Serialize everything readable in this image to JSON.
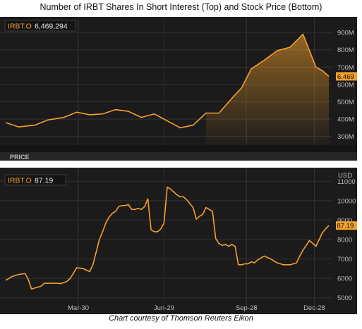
{
  "title": "Number of IRBT Shares In Short Interest (Top) and Stock Price (Bottom)",
  "caption": "Chart courtesy of Thomson Reuters Eikon",
  "colors": {
    "background": "#1b1b1b",
    "line": "#f5a02a",
    "grid": "#333333",
    "text": "#bdbdbd",
    "tag_bg": "#f5a02a"
  },
  "chart_data": [
    {
      "type": "area",
      "legend": {
        "ticker": "IRBT.O",
        "value": "6,469,294"
      },
      "last_value_tag": "6.469",
      "yticks": [
        {
          "value": 3,
          "label": "300M"
        },
        {
          "value": 4,
          "label": "400M"
        },
        {
          "value": 5,
          "label": "500M"
        },
        {
          "value": 6,
          "label": "600M"
        },
        {
          "value": 7,
          "label": "700M"
        },
        {
          "value": 8,
          "label": "800M"
        },
        {
          "value": 9,
          "label": "900M"
        }
      ],
      "ylim": [
        2.5,
        9.9
      ],
      "xlim": [
        0,
        100
      ],
      "x": [
        0,
        4,
        9,
        13,
        18,
        22,
        26,
        30,
        34,
        38,
        42,
        46,
        50,
        54,
        58,
        62,
        66,
        70,
        73,
        76,
        80,
        84,
        88,
        92,
        96,
        98,
        100
      ],
      "values": [
        3.8,
        3.55,
        3.65,
        3.95,
        4.1,
        4.4,
        4.25,
        4.3,
        4.55,
        4.45,
        4.1,
        4.3,
        3.9,
        3.5,
        3.65,
        4.35,
        4.35,
        5.2,
        5.8,
        6.9,
        7.4,
        7.95,
        8.15,
        8.9,
        7.0,
        6.8,
        6.469
      ]
    },
    {
      "type": "line",
      "section_label": "PRICE",
      "legend": {
        "ticker": "IRBT.O",
        "value": "87.19"
      },
      "last_value_tag": "87.19",
      "yunit": "USD",
      "yticks": [
        {
          "value": 50,
          "label": "5000"
        },
        {
          "value": 60,
          "label": "6000"
        },
        {
          "value": 70,
          "label": "7000"
        },
        {
          "value": 80,
          "label": "8000"
        },
        {
          "value": 90,
          "label": "9000"
        },
        {
          "value": 100,
          "label": "10000"
        },
        {
          "value": 110,
          "label": "11000"
        }
      ],
      "ylim": [
        43,
        117
      ],
      "xlim": [
        0,
        100
      ],
      "xticks": [
        {
          "value": 22.5,
          "label": "Mar-30"
        },
        {
          "value": 49,
          "label": "Jun-29"
        },
        {
          "value": 74.5,
          "label": "Sep-28"
        },
        {
          "value": 95.5,
          "label": "Dec-28"
        }
      ],
      "x": [
        0,
        2,
        4,
        6,
        7,
        8,
        9,
        10,
        11,
        12,
        13,
        14,
        16,
        17,
        18,
        19,
        20,
        22,
        24,
        26,
        27,
        28,
        29,
        30,
        31,
        32,
        33,
        34,
        35,
        36,
        37,
        38,
        39,
        40,
        41,
        42,
        43,
        44,
        45,
        46,
        47,
        48,
        49,
        50,
        51,
        52,
        53,
        54,
        55,
        56,
        57,
        58,
        59,
        60,
        61,
        62,
        63,
        64,
        65,
        66,
        67,
        68,
        69,
        70,
        71,
        72,
        73,
        74,
        75,
        76,
        77,
        78,
        79,
        80,
        82,
        84,
        86,
        88,
        90,
        91,
        92,
        94,
        96,
        98,
        99,
        100
      ],
      "values": [
        59.0,
        61.0,
        62.0,
        62.5,
        59.5,
        54.5,
        55.0,
        55.5,
        56.0,
        57.5,
        57.5,
        57.5,
        57.5,
        57.3,
        57.8,
        58.5,
        60.0,
        65.5,
        65.0,
        63.5,
        67.0,
        73.5,
        80.0,
        84.0,
        88.5,
        91.5,
        93.5,
        94.5,
        97.0,
        97.5,
        97.5,
        98.0,
        95.5,
        95.5,
        96.0,
        95.5,
        97.0,
        101.0,
        85.0,
        84.0,
        84.0,
        85.5,
        88.5,
        107.0,
        106.0,
        104.5,
        103.0,
        102.0,
        102.0,
        100.5,
        98.5,
        96.5,
        90.5,
        92.0,
        93.0,
        96.5,
        95.5,
        94.5,
        80.5,
        78.0,
        77.0,
        77.5,
        76.5,
        77.5,
        76.5,
        67.0,
        67.0,
        67.5,
        67.5,
        68.5,
        68.0,
        69.5,
        70.5,
        71.5,
        70.0,
        68.0,
        67.0,
        67.0,
        68.0,
        71.5,
        74.5,
        79.5,
        76.5,
        83.5,
        85.5,
        87.19
      ]
    }
  ]
}
